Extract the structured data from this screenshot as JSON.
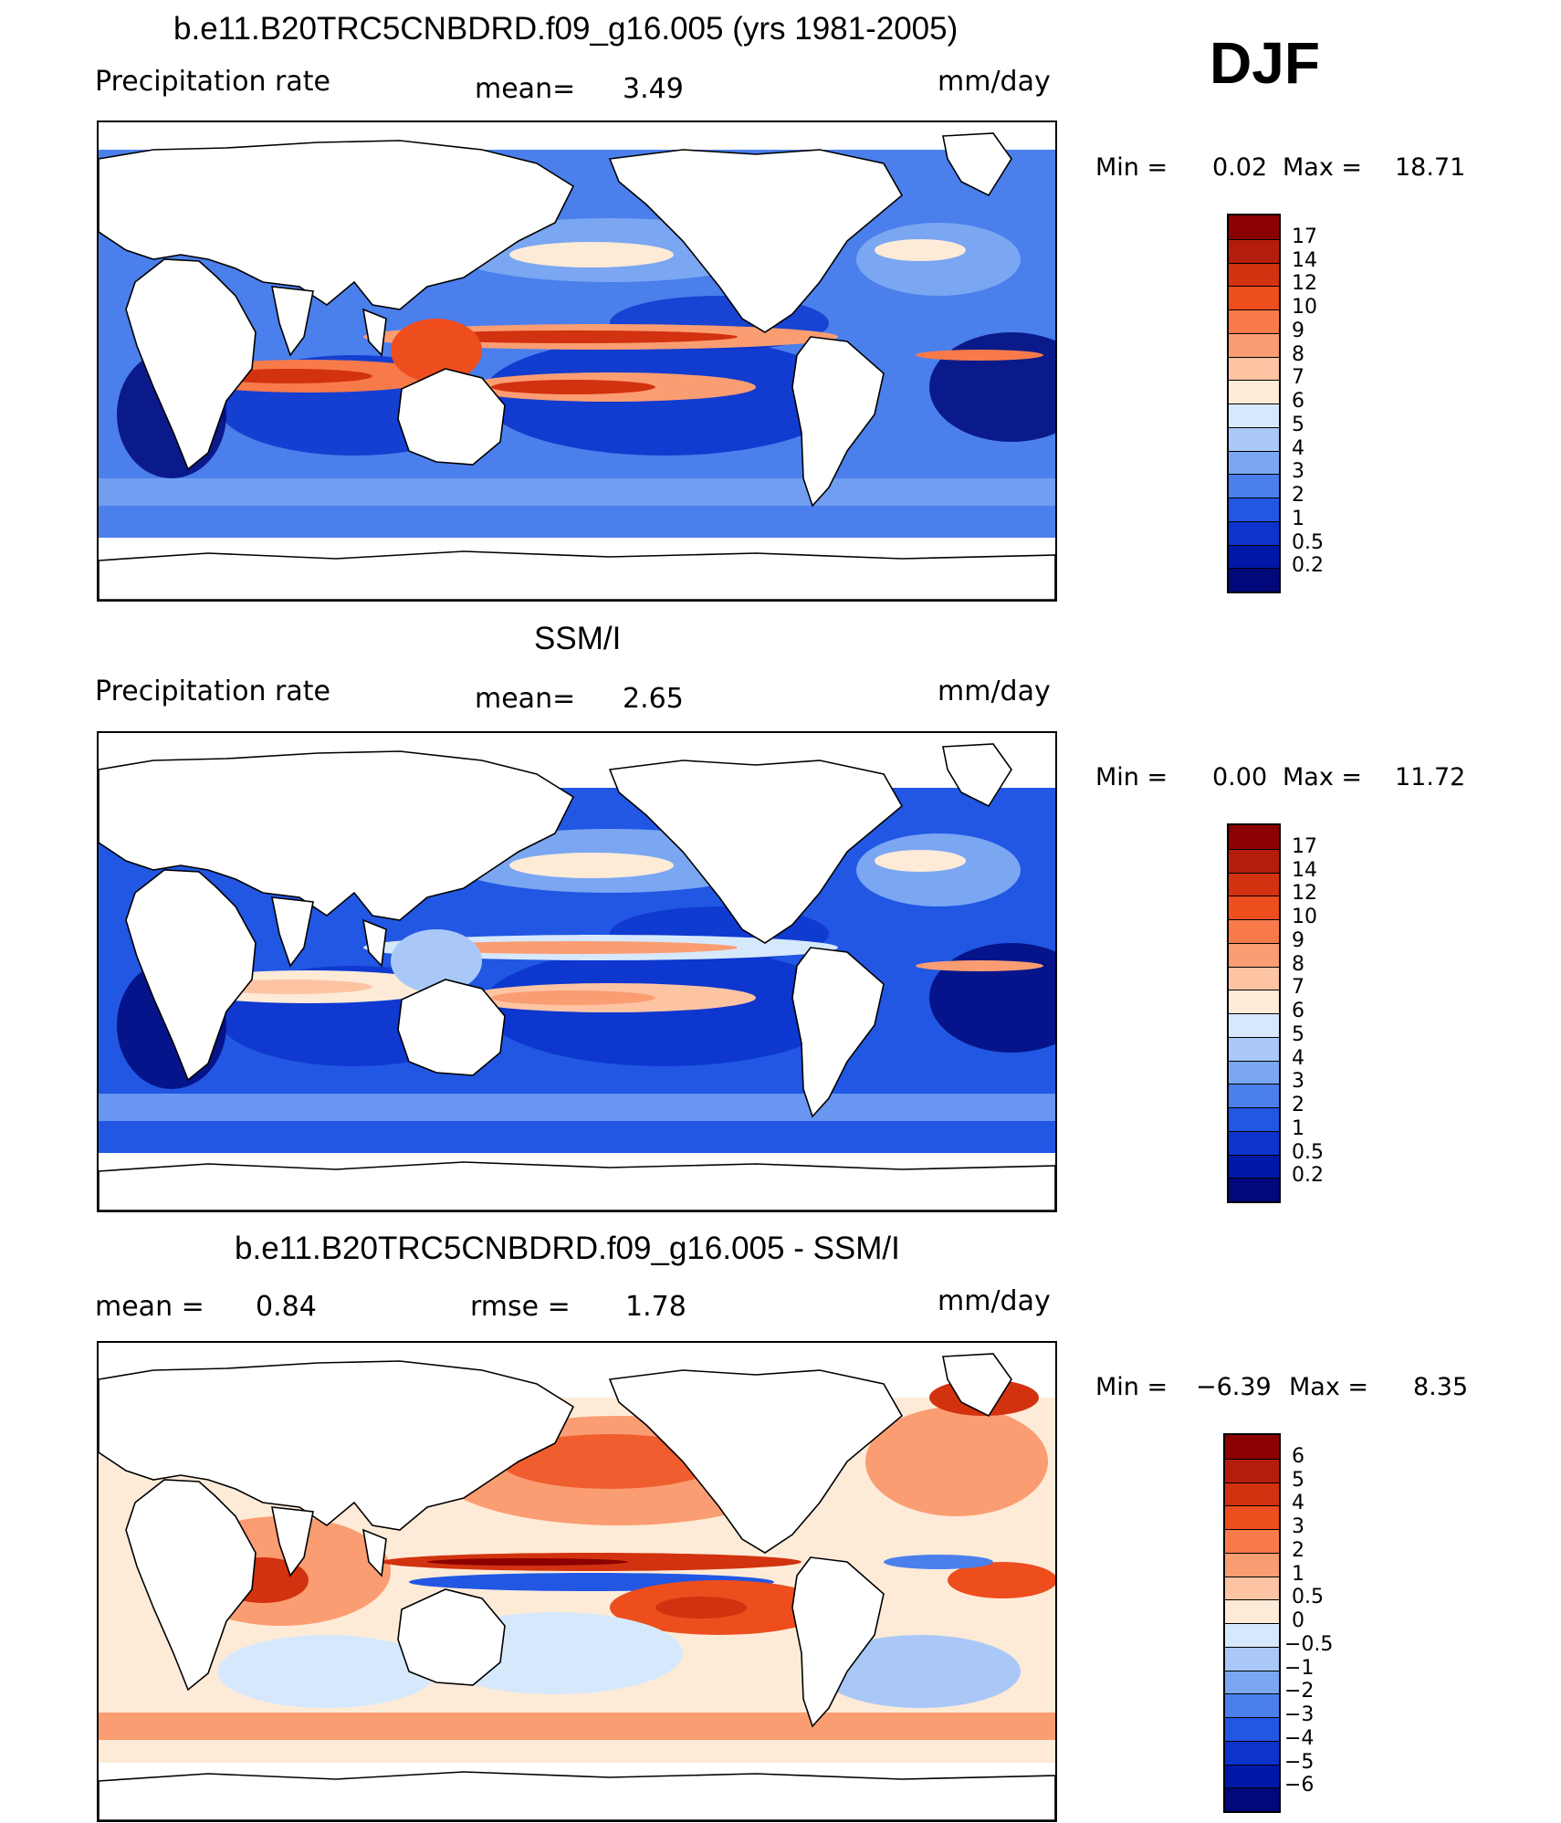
{
  "season": "DJF",
  "panels": [
    {
      "title": "b.e11.B20TRC5CNBDRD.f09_g16.005 (yrs 1981-2005)",
      "left_label": "Precipitation rate",
      "center_label": "mean=",
      "center_value": "3.49",
      "units": "mm/day",
      "min_label": "Min =",
      "min_value": "0.02",
      "max_label": "Max =",
      "max_value": "18.71",
      "field": "precipitation"
    },
    {
      "title": "SSM/I",
      "left_label": "Precipitation rate",
      "center_label": "mean=",
      "center_value": "2.65",
      "units": "mm/day",
      "min_label": "Min =",
      "min_value": "0.00",
      "max_label": "Max =",
      "max_value": "11.72",
      "field": "observed-precipitation"
    },
    {
      "title": "b.e11.B20TRC5CNBDRD.f09_g16.005 - SSM/I",
      "left_label": "mean =",
      "left_value": "0.84",
      "center_label": "rmse =",
      "center_value": "1.78",
      "units": "mm/day",
      "min_label": "Min =",
      "min_value": "−6.39",
      "max_label": "Max =",
      "max_value": "8.35",
      "field": "difference"
    }
  ],
  "colorbars": {
    "precip_levels": [
      "17",
      "14",
      "12",
      "10",
      "9",
      "8",
      "7",
      "6",
      "5",
      "4",
      "3",
      "2",
      "1",
      "0.5",
      "0.2"
    ],
    "precip_colors": [
      "#8b0000",
      "#b41d0c",
      "#d2320f",
      "#ee4d1d",
      "#f87a4a",
      "#fb9d72",
      "#fdc4a4",
      "#fdebd8",
      "#d6e8fb",
      "#aac8f7",
      "#7aa6f2",
      "#4a7fec",
      "#2157e3",
      "#0c34cc",
      "#0018a8",
      "#00087a"
    ],
    "diff_levels": [
      "6",
      "5",
      "4",
      "3",
      "2",
      "1",
      "0.5",
      "0",
      "−0.5",
      "−1",
      "−2",
      "−3",
      "−4",
      "−5",
      "−6"
    ],
    "diff_colors": [
      "#8b0000",
      "#b41d0c",
      "#d2320f",
      "#ee4d1d",
      "#f87a4a",
      "#fb9d72",
      "#fdc4a4",
      "#fdebd8",
      "#d6e8fb",
      "#aac8f7",
      "#7aa6f2",
      "#4a7fec",
      "#2157e3",
      "#0c34cc",
      "#0018a8",
      "#00087a"
    ]
  }
}
